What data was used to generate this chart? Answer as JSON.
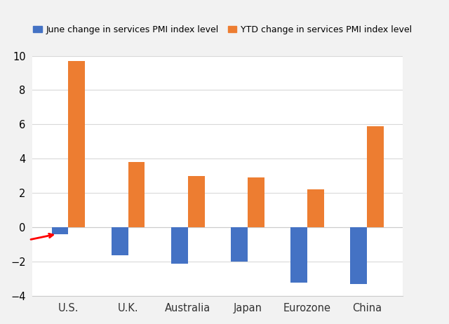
{
  "categories": [
    "U.S.",
    "U.K.",
    "Australia",
    "Japan",
    "Eurozone",
    "China"
  ],
  "june_values": [
    -0.4,
    -1.6,
    -2.1,
    -2.0,
    -3.2,
    -3.3
  ],
  "ytd_values": [
    9.7,
    3.8,
    3.0,
    2.9,
    2.2,
    5.9
  ],
  "june_color": "#4472C4",
  "ytd_color": "#ED7D31",
  "ylim": [
    -4,
    10
  ],
  "yticks": [
    -4,
    -2,
    0,
    2,
    4,
    6,
    8,
    10
  ],
  "legend_june": "June change in services PMI index level",
  "legend_ytd": "YTD change in services PMI index level",
  "bar_width": 0.28,
  "background_color": "#F2F2F2",
  "plot_bg_color": "#FFFFFF",
  "grid_color": "#D9D9D9",
  "spine_color": "#CCCCCC"
}
